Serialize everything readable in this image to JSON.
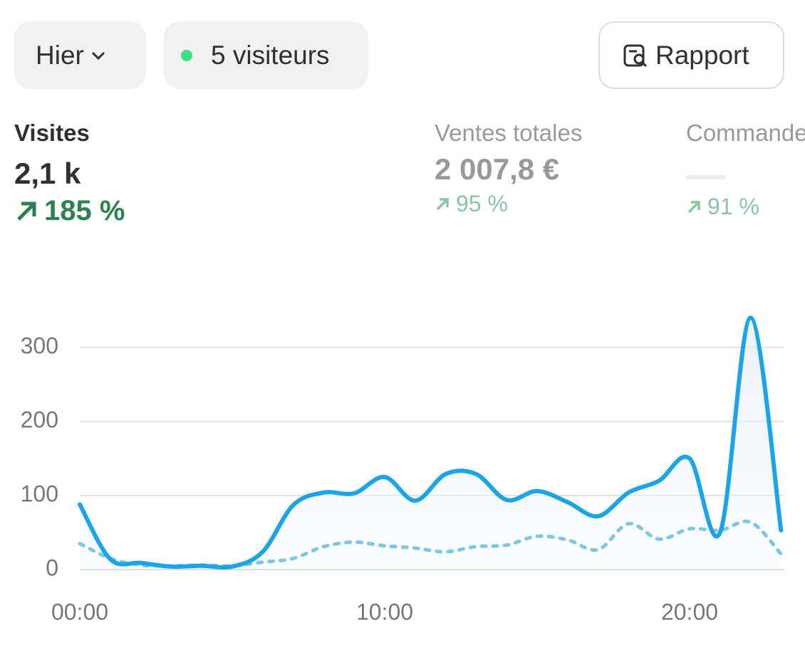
{
  "filters": {
    "period": "Hier",
    "visitors": "5 visiteurs",
    "report": "Rapport"
  },
  "metrics": [
    {
      "label": "Visites",
      "value": "2,1 k",
      "change": "185 %"
    },
    {
      "label": "Ventes totales",
      "value": "2 007,8 €",
      "change": "95 %"
    },
    {
      "label": "Commandes",
      "change": "91 %"
    }
  ],
  "chart_data": {
    "type": "line",
    "categories": [
      "00:00",
      null,
      null,
      null,
      null,
      null,
      null,
      null,
      null,
      null,
      "10:00",
      null,
      null,
      null,
      null,
      null,
      null,
      null,
      null,
      null,
      "20:00",
      null,
      null,
      null
    ],
    "series": [
      {
        "color": "#1ba5e8",
        "values": [
          88,
          14,
          9,
          4,
          5,
          4,
          24,
          87,
          104,
          103,
          125,
          93,
          129,
          129,
          94,
          106,
          91,
          72,
          104,
          120,
          150,
          50,
          340,
          53
        ]
      },
      {
        "color": "#7cc6e6",
        "dashed": true,
        "values": [
          35,
          15,
          6,
          5,
          6,
          5,
          10,
          15,
          31,
          37,
          32,
          29,
          24,
          31,
          33,
          45,
          40,
          27,
          62,
          41,
          55,
          53,
          64,
          21
        ]
      }
    ],
    "ylim": [
      0,
      350
    ],
    "yticks": [
      0,
      100,
      200,
      300
    ],
    "grid": true
  }
}
